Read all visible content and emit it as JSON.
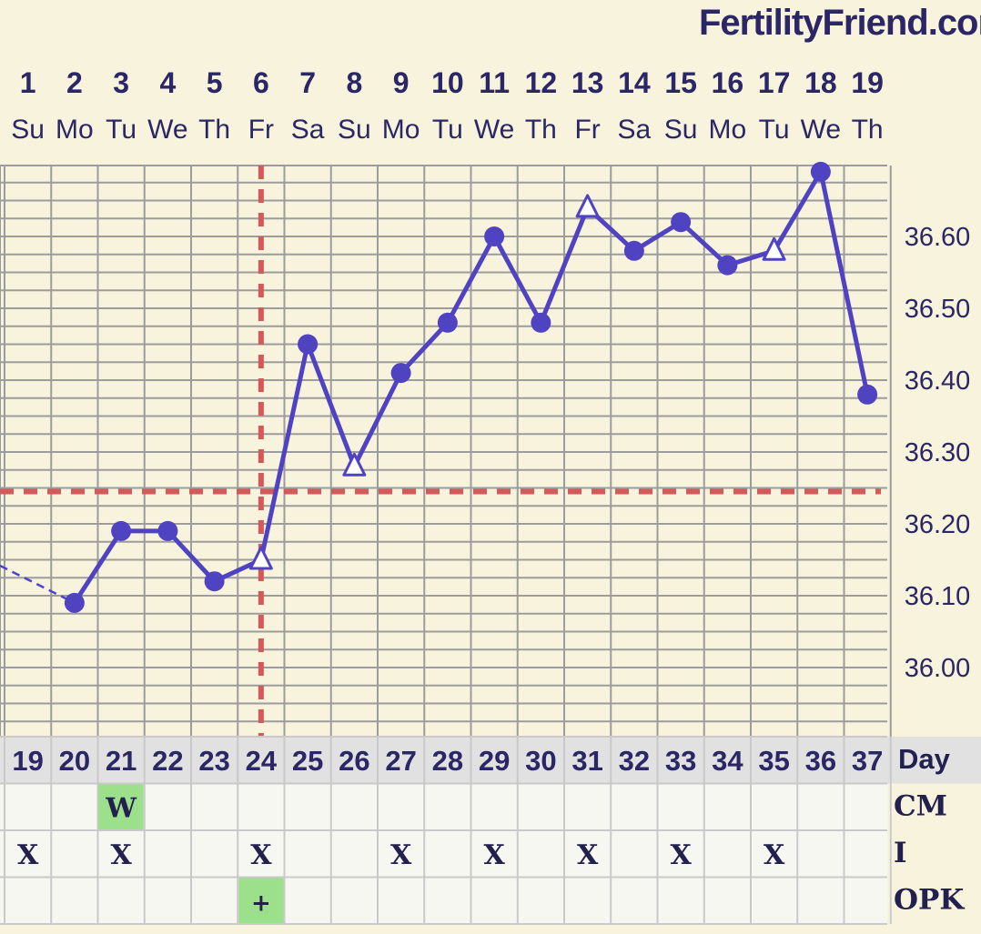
{
  "brand": "FertilityFriend.com",
  "chart_data": {
    "type": "line",
    "dates": [
      "1",
      "2",
      "3",
      "4",
      "5",
      "6",
      "7",
      "8",
      "9",
      "10",
      "11",
      "12",
      "13",
      "14",
      "15",
      "16",
      "17",
      "18",
      "19"
    ],
    "weekdays": [
      "Su",
      "Mo",
      "Tu",
      "We",
      "Th",
      "Fr",
      "Sa",
      "Su",
      "Mo",
      "Tu",
      "We",
      "Th",
      "Fr",
      "Sa",
      "Su",
      "Mo",
      "Tu",
      "We",
      "Th"
    ],
    "cycle_days": [
      "19",
      "20",
      "21",
      "22",
      "23",
      "24",
      "25",
      "26",
      "27",
      "28",
      "29",
      "30",
      "31",
      "32",
      "33",
      "34",
      "35",
      "36",
      "37"
    ],
    "temperatures": [
      36.14,
      36.09,
      36.19,
      36.19,
      36.12,
      36.15,
      36.45,
      36.28,
      36.41,
      36.48,
      36.6,
      36.48,
      36.64,
      36.58,
      36.62,
      36.56,
      36.58,
      36.69,
      36.38
    ],
    "markers": [
      "none",
      "dot",
      "dot",
      "dot",
      "dot",
      "triangle",
      "dot",
      "triangle",
      "dot",
      "dot",
      "dot",
      "dot",
      "triangle",
      "dot",
      "dot",
      "dot",
      "triangle",
      "dot",
      "dot"
    ],
    "y_ticks": [
      "36.60",
      "36.50",
      "36.40",
      "36.30",
      "36.20",
      "36.10",
      "36.00"
    ],
    "ylim": [
      35.93,
      36.7
    ],
    "coverline": 36.245,
    "ovulation_day_index": 5,
    "rows": [
      {
        "label": "Day"
      },
      {
        "label": "CM",
        "entries": [
          {
            "index": 2,
            "text": "W"
          }
        ]
      },
      {
        "label": "I",
        "entries": [
          {
            "index": 0,
            "text": "X"
          },
          {
            "index": 2,
            "text": "X"
          },
          {
            "index": 5,
            "text": "X"
          },
          {
            "index": 8,
            "text": "X"
          },
          {
            "index": 10,
            "text": "X"
          },
          {
            "index": 12,
            "text": "X"
          },
          {
            "index": 14,
            "text": "X"
          },
          {
            "index": 16,
            "text": "X"
          }
        ]
      },
      {
        "label": "OPK",
        "entries": [
          {
            "index": 5,
            "text": "+"
          }
        ]
      }
    ],
    "colors": {
      "line": "#4f43c2",
      "coverline": "#d45a5a",
      "grid": "#9c9c9c",
      "highlight": "#9de08b",
      "text": "#2b2766"
    }
  }
}
